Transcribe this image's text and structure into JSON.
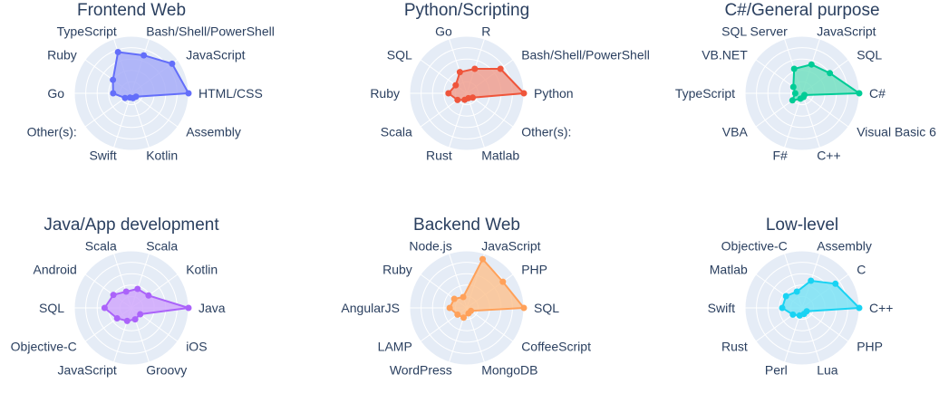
{
  "chart_data": [
    {
      "type": "radar",
      "title": "Frontend Web",
      "color": "#636efa",
      "fill": "#a7adf8",
      "radial_range": [
        0,
        1
      ],
      "categories": [
        "HTML/CSS",
        "JavaScript",
        "Bash/Shell/PowerShell",
        "TypeScript",
        "Ruby",
        "Go",
        "Other(s):",
        "Swift",
        "Kotlin",
        "Assembly"
      ],
      "label_positions": [
        "right",
        "right",
        "right",
        "left",
        "left",
        "left",
        "left",
        "left",
        "right",
        "right"
      ],
      "values": [
        1.0,
        0.88,
        0.7,
        0.76,
        0.4,
        0.32,
        0.14,
        0.08,
        0.09,
        0.1
      ]
    },
    {
      "type": "radar",
      "title": "Python/Scripting",
      "color": "#ef553b",
      "fill": "#f0a090",
      "radial_range": [
        0,
        1
      ],
      "categories": [
        "Python",
        "Bash/Shell/PowerShell",
        "R",
        "Go",
        "SQL",
        "Ruby",
        "Scala",
        "Rust",
        "Matlab",
        "Other(s):"
      ],
      "label_positions": [
        "right",
        "right",
        "right",
        "left",
        "left",
        "left",
        "left",
        "left",
        "right",
        "right"
      ],
      "values": [
        1.0,
        0.73,
        0.45,
        0.39,
        0.24,
        0.32,
        0.2,
        0.12,
        0.09,
        0.13
      ]
    },
    {
      "type": "radar",
      "title": "C#/General purpose",
      "color": "#00cc96",
      "fill": "#75e0c2",
      "radial_range": [
        0,
        1
      ],
      "categories": [
        "C#",
        "SQL",
        "JavaScript",
        "SQL Server",
        "VB.NET",
        "TypeScript",
        "VBA",
        "F#",
        "C++",
        "Visual Basic 6"
      ],
      "label_positions": [
        "right",
        "right",
        "right",
        "left",
        "left",
        "left",
        "left",
        "left",
        "right",
        "right"
      ],
      "values": [
        1.0,
        0.6,
        0.53,
        0.45,
        0.19,
        0.12,
        0.21,
        0.1,
        0.07,
        0.05
      ]
    },
    {
      "type": "radar",
      "title": "Java/App development",
      "color": "#ab63fa",
      "fill": "#d0a8fb",
      "radial_range": [
        0,
        1
      ],
      "categories": [
        "Java",
        "Kotlin",
        "Scala",
        "Scala",
        "Android",
        "SQL",
        "Objective-C",
        "JavaScript",
        "Groovy",
        "iOS"
      ],
      "label_positions": [
        "right",
        "right",
        "right",
        "left",
        "left",
        "left",
        "left",
        "left",
        "right",
        "right"
      ],
      "values": [
        1.0,
        0.37,
        0.35,
        0.3,
        0.39,
        0.47,
        0.31,
        0.24,
        0.21,
        0.19
      ]
    },
    {
      "type": "radar",
      "title": "Backend Web",
      "color": "#ffa15a",
      "fill": "#fcc393",
      "radial_range": [
        0,
        1
      ],
      "categories": [
        "SQL",
        "PHP",
        "JavaScript",
        "Node.js",
        "Ruby",
        "AngularJS",
        "LAMP",
        "WordPress",
        "MongoDB",
        "CoffeeScript"
      ],
      "label_positions": [
        "right",
        "right",
        "right",
        "left",
        "left",
        "left",
        "left",
        "left",
        "right",
        "right"
      ],
      "values": [
        1.0,
        0.78,
        0.9,
        0.2,
        0.27,
        0.3,
        0.2,
        0.18,
        0.1,
        0.09
      ]
    },
    {
      "type": "radar",
      "title": "Low-level",
      "color": "#19d3f3",
      "fill": "#7ee3f5",
      "radial_range": [
        0,
        1
      ],
      "categories": [
        "C++",
        "C",
        "Assembly",
        "Objective-C",
        "Matlab",
        "Swift",
        "Rust",
        "Perl",
        "Lua",
        "PHP"
      ],
      "label_positions": [
        "right",
        "right",
        "right",
        "left",
        "left",
        "left",
        "left",
        "left",
        "right",
        "right"
      ],
      "values": [
        1.0,
        0.72,
        0.5,
        0.3,
        0.35,
        0.35,
        0.2,
        0.14,
        0.11,
        0.1
      ]
    }
  ]
}
